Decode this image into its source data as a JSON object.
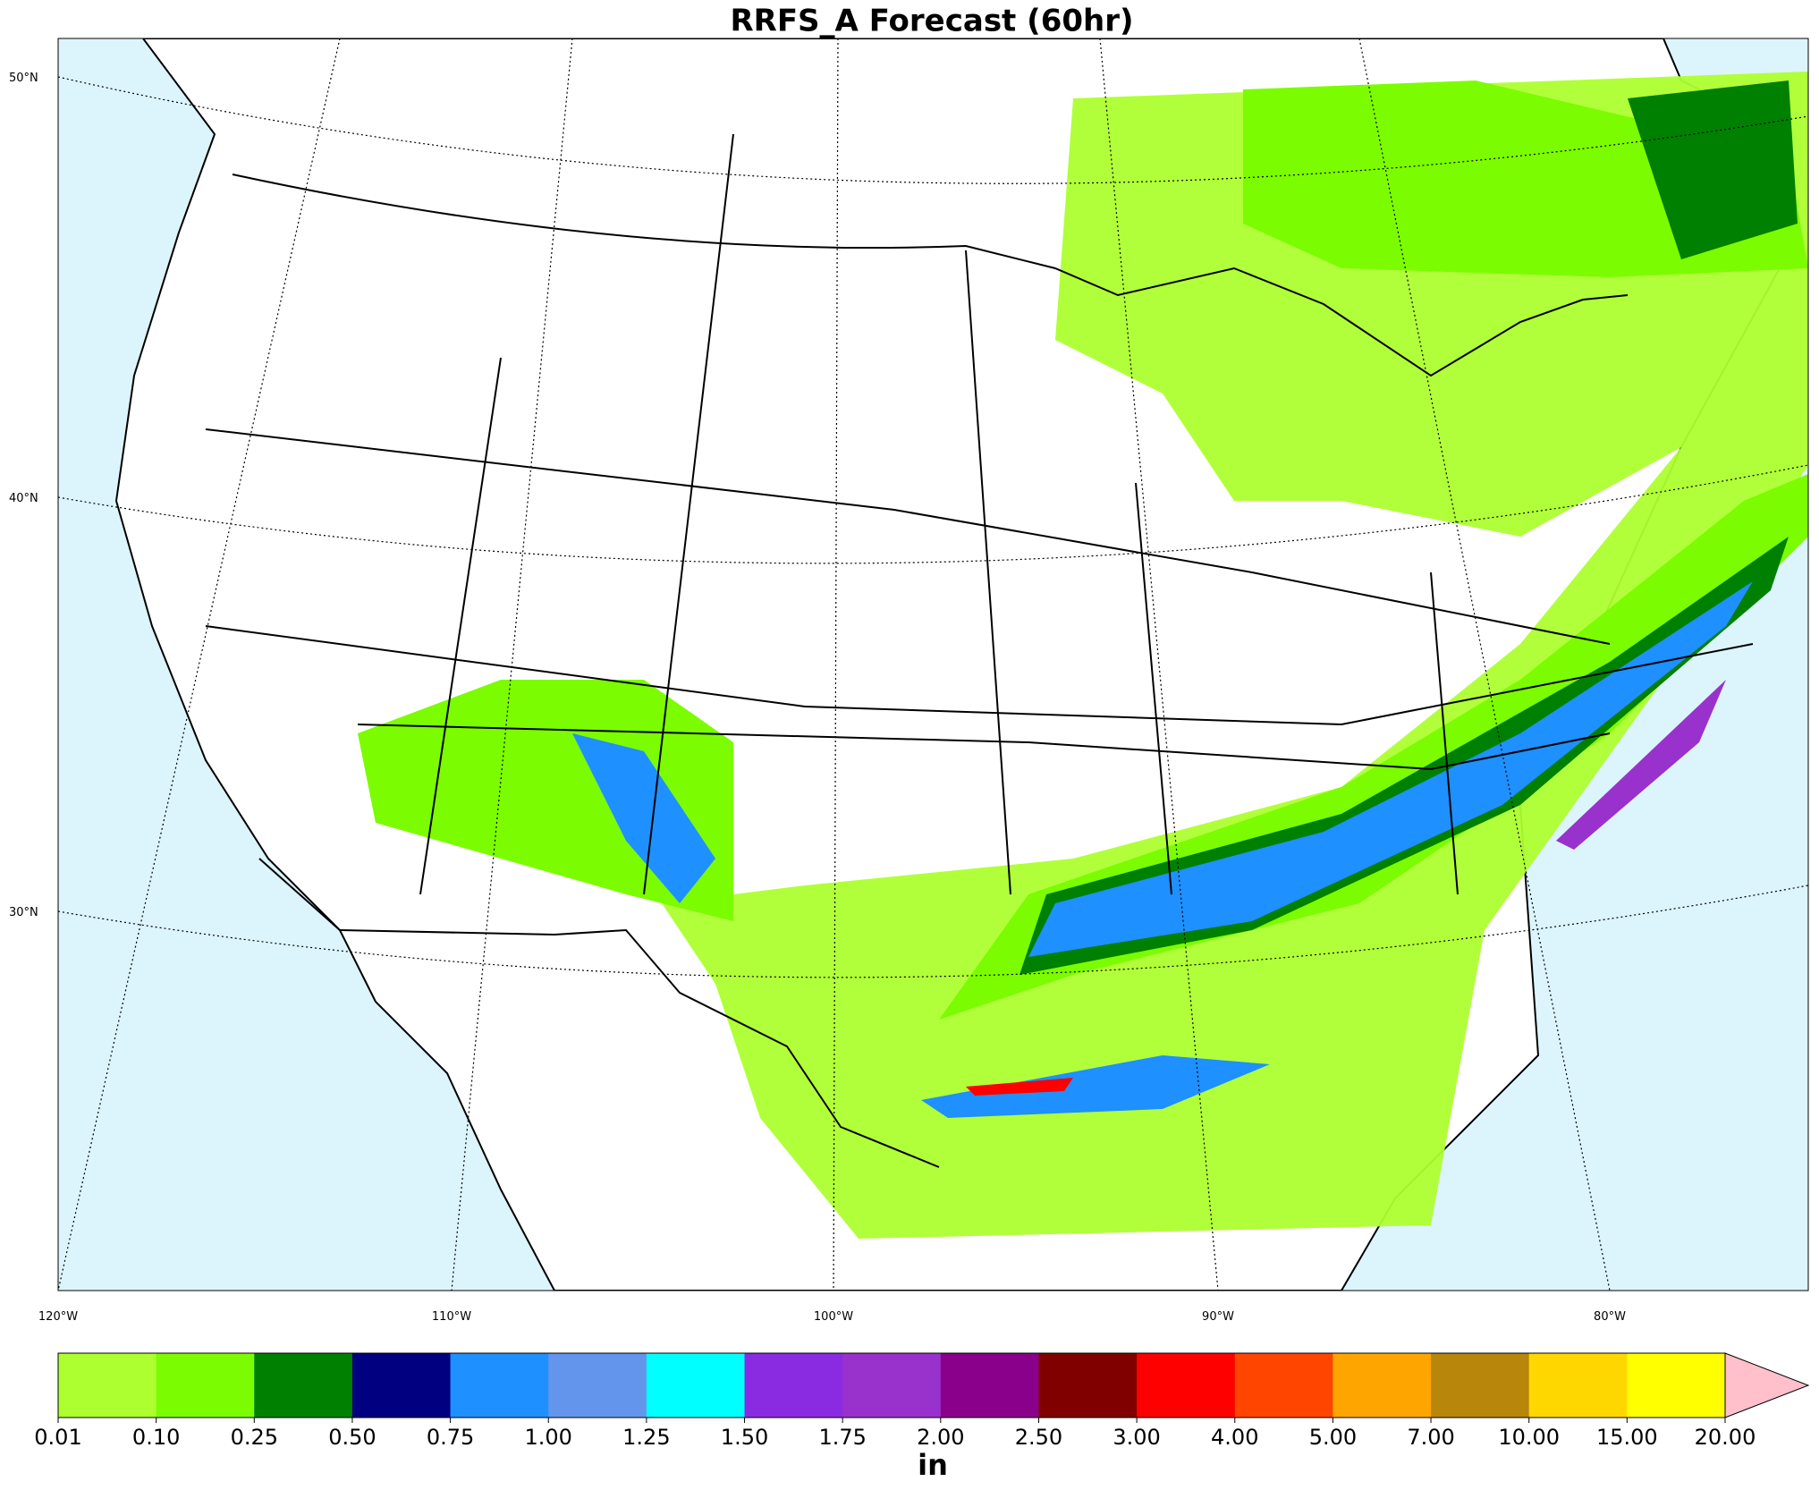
{
  "header": {
    "title": "RRFS_A Forecast (60hr)"
  },
  "map": {
    "lat_labels": [
      "50°N",
      "40°N",
      "30°N"
    ],
    "lon_labels": [
      "120°W",
      "110°W",
      "100°W",
      "90°W",
      "80°W"
    ]
  },
  "colorbar": {
    "tick_labels": [
      "0.01",
      "0.10",
      "0.25",
      "0.50",
      "0.75",
      "1.00",
      "1.25",
      "1.50",
      "1.75",
      "2.00",
      "2.50",
      "3.00",
      "4.00",
      "5.00",
      "7.00",
      "10.00",
      "15.00",
      "20.00"
    ],
    "colors": [
      "#adff2f",
      "#7cfc00",
      "#008000",
      "#000080",
      "#1e90ff",
      "#6495ed",
      "#00ffff",
      "#8a2be2",
      "#9932cc",
      "#8b008b",
      "#800000",
      "#ff0000",
      "#ff4500",
      "#ffa500",
      "#b8860b",
      "#ffd700",
      "#ffff00"
    ],
    "extend_color": "#ffc0cb",
    "unit": "in"
  }
}
